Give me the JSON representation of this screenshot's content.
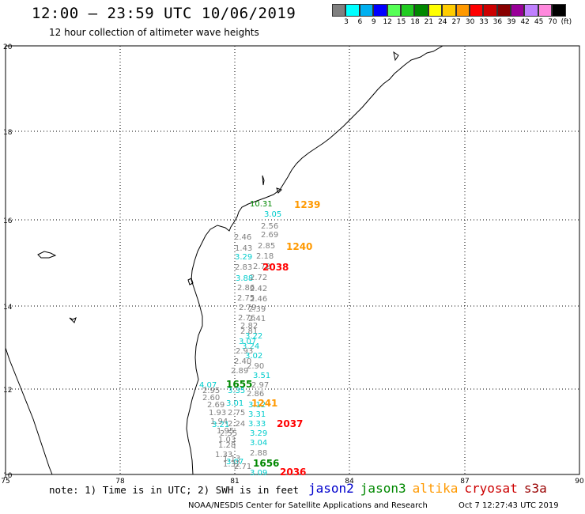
{
  "header": {
    "title": "12:00 — 23:59 UTC 10/06/2019",
    "subtitle": "12 hour collection of altimeter wave heights"
  },
  "colorbar": {
    "colors": [
      "#808080",
      "#00ffff",
      "#00b0f0",
      "#0000ff",
      "#55ff55",
      "#22cc22",
      "#008800",
      "#ffff00",
      "#ffcc00",
      "#ff9900",
      "#ff0000",
      "#cc0000",
      "#880000",
      "#990099",
      "#c080ff",
      "#ff88dd",
      "#000000"
    ],
    "tick_labels": [
      "3",
      "6",
      "9",
      "12",
      "15",
      "18",
      "21",
      "24",
      "27",
      "30",
      "33",
      "36",
      "39",
      "42",
      "45",
      "70",
      "(ft)"
    ]
  },
  "axes": {
    "lon_labels": [
      "75",
      "78",
      "81",
      "84",
      "87",
      "90"
    ],
    "lat_labels": [
      "20",
      "18",
      "16",
      "14",
      "12",
      "10"
    ]
  },
  "passes": [
    {
      "id": "p1239",
      "label": "1239",
      "color": "#ff9900"
    },
    {
      "id": "p1240",
      "label": "1240",
      "color": "#ff9900"
    },
    {
      "id": "p2038",
      "label": "2038",
      "color": "#ff0000"
    },
    {
      "id": "p1655",
      "label": "1655",
      "color": "#008800"
    },
    {
      "id": "p1241",
      "label": "1241",
      "color": "#ff9900"
    },
    {
      "id": "p2037",
      "label": "2037",
      "color": "#ff0000"
    },
    {
      "id": "p1656",
      "label": "1656",
      "color": "#008800"
    },
    {
      "id": "p2036",
      "label": "2036",
      "color": "#ff0000"
    }
  ],
  "wave_labels": [
    {
      "t": "10.31",
      "c": "#008800"
    },
    {
      "t": "3.05",
      "c": "#00cccc"
    },
    {
      "t": "2.56",
      "c": "#808080"
    },
    {
      "t": "2.46",
      "c": "#808080"
    },
    {
      "t": "2.69",
      "c": "#808080"
    },
    {
      "t": "1.43",
      "c": "#808080"
    },
    {
      "t": "2.85",
      "c": "#808080"
    },
    {
      "t": "3.29",
      "c": "#00cccc"
    },
    {
      "t": "2.18",
      "c": "#808080"
    },
    {
      "t": "2.83",
      "c": "#808080"
    },
    {
      "t": "2.72",
      "c": "#808080"
    },
    {
      "t": "3.88",
      "c": "#00cccc"
    },
    {
      "t": "2.72",
      "c": "#808080"
    },
    {
      "t": "2.86",
      "c": "#808080"
    },
    {
      "t": "2.42",
      "c": "#808080"
    },
    {
      "t": "2.75",
      "c": "#808080"
    },
    {
      "t": "2.46",
      "c": "#808080"
    },
    {
      "t": "2.79",
      "c": "#808080"
    },
    {
      "t": "2.39",
      "c": "#808080"
    },
    {
      "t": "2.76",
      "c": "#808080"
    },
    {
      "t": "2.41",
      "c": "#808080"
    },
    {
      "t": "2.82",
      "c": "#808080"
    },
    {
      "t": "2.81",
      "c": "#808080"
    },
    {
      "t": "3.22",
      "c": "#00cccc"
    },
    {
      "t": "3.07",
      "c": "#00cccc"
    },
    {
      "t": "3.24",
      "c": "#00cccc"
    },
    {
      "t": "2.93",
      "c": "#808080"
    },
    {
      "t": "3.02",
      "c": "#00cccc"
    },
    {
      "t": "2.40",
      "c": "#808080"
    },
    {
      "t": "2.90",
      "c": "#808080"
    },
    {
      "t": "2.89",
      "c": "#808080"
    },
    {
      "t": "3.51",
      "c": "#00cccc"
    },
    {
      "t": "4.07",
      "c": "#00cccc"
    },
    {
      "t": "2.97",
      "c": "#808080"
    },
    {
      "t": "2.95",
      "c": "#808080"
    },
    {
      "t": "3.35",
      "c": "#00cccc"
    },
    {
      "t": "2.60",
      "c": "#808080"
    },
    {
      "t": "2.86",
      "c": "#808080"
    },
    {
      "t": "2.69",
      "c": "#808080"
    },
    {
      "t": "3.01",
      "c": "#00cccc"
    },
    {
      "t": "3.12",
      "c": "#00cccc"
    },
    {
      "t": "1.93",
      "c": "#808080"
    },
    {
      "t": "2.75",
      "c": "#808080"
    },
    {
      "t": "3.31",
      "c": "#00cccc"
    },
    {
      "t": "1.94",
      "c": "#808080"
    },
    {
      "t": "3.21",
      "c": "#00cccc"
    },
    {
      "t": "2.24",
      "c": "#808080"
    },
    {
      "t": "3.33",
      "c": "#00cccc"
    },
    {
      "t": "1.95",
      "c": "#808080"
    },
    {
      "t": "2.55",
      "c": "#808080"
    },
    {
      "t": "3.29",
      "c": "#00cccc"
    },
    {
      "t": "1.03",
      "c": "#808080"
    },
    {
      "t": "3.04",
      "c": "#00cccc"
    },
    {
      "t": "1.28",
      "c": "#808080"
    },
    {
      "t": "1.33",
      "c": "#808080"
    },
    {
      "t": "2.88",
      "c": "#808080"
    },
    {
      "t": "1.13",
      "c": "#808080"
    },
    {
      "t": "3.07",
      "c": "#00cccc"
    },
    {
      "t": "1.32",
      "c": "#808080"
    },
    {
      "t": "2.71",
      "c": "#808080"
    },
    {
      "t": "3.09",
      "c": "#00cccc"
    }
  ],
  "footer": {
    "note": "note: 1) Time is in UTC; 2) SWH is in feet",
    "satellites": [
      {
        "name": "jason2",
        "color": "#0000cc"
      },
      {
        "name": "jason3",
        "color": "#008800"
      },
      {
        "name": "altika",
        "color": "#ff9900"
      },
      {
        "name": "cryosat",
        "color": "#cc0000"
      },
      {
        "name": "s3a",
        "color": "#990000"
      }
    ],
    "credit": "NOAA/NESDIS Center for Satellite Applications and Research",
    "run_time": "Oct  7 12:27:43 UTC 2019"
  }
}
